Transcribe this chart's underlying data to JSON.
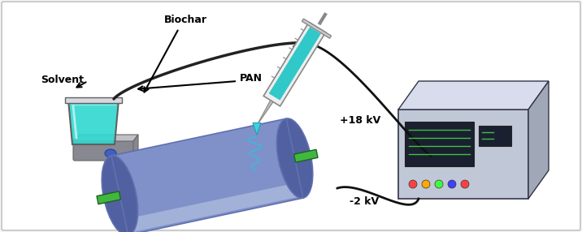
{
  "bg_color": "#f8f8f8",
  "border_color": "#cccccc",
  "labels": {
    "biochar": "Biochar",
    "solvent": "Solvent",
    "pan": "PAN",
    "plus18kv": "+18 kV",
    "minus2kv": "-2 kV"
  },
  "beaker_color": "#30d8d0",
  "beaker_color2": "#50e8e0",
  "drum_color_main": "#8090c8",
  "drum_color_light": "#b0c0e0",
  "drum_color_dark": "#5060a0",
  "drum_color_rim": "#6070b0",
  "syringe_body_color": "#e8e8e8",
  "syringe_liquid_color": "#30c8c8",
  "power_supply_front": "#c0c8d8",
  "power_supply_top": "#d8dcec",
  "power_supply_side": "#a0a8b8",
  "wire_color": "#111111",
  "stand_color": "#a0a0a8",
  "stand_base_color": "#888890",
  "green_axle": "#40b840",
  "font_size": 9
}
